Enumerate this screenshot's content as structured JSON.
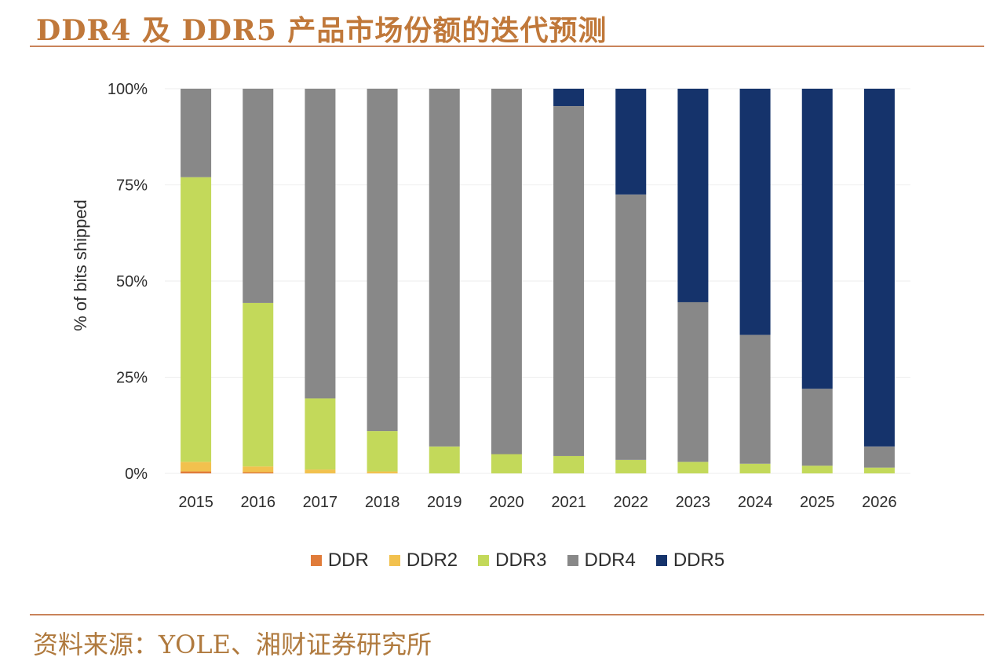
{
  "header": {
    "title": "DDR4 及 DDR5 产品市场份额的迭代预测"
  },
  "footer": {
    "source": "资料来源：YOLE、湘财证券研究所"
  },
  "chart_data": {
    "type": "bar",
    "stacked": true,
    "title": "DDR4 及 DDR5 产品市场份额的迭代预测",
    "xlabel": "",
    "ylabel": "% of bits shipped",
    "ylim": [
      0,
      100
    ],
    "yticks": [
      0,
      25,
      50,
      75,
      100
    ],
    "ytick_labels": [
      "0%",
      "25%",
      "50%",
      "75%",
      "100%"
    ],
    "categories": [
      "2015",
      "2016",
      "2017",
      "2018",
      "2019",
      "2020",
      "2021",
      "2022",
      "2023",
      "2024",
      "2025",
      "2026"
    ],
    "legend_position": "bottom",
    "series": [
      {
        "name": "DDR",
        "color": "#e07b39",
        "values": [
          0.5,
          0.3,
          0,
          0,
          0,
          0,
          0,
          0,
          0,
          0,
          0,
          0
        ]
      },
      {
        "name": "DDR2",
        "color": "#f2c14e",
        "values": [
          2.5,
          1.5,
          1,
          0.5,
          0,
          0,
          0,
          0,
          0,
          0,
          0,
          0
        ]
      },
      {
        "name": "DDR3",
        "color": "#c3d95a",
        "values": [
          74,
          42.5,
          18.5,
          10.5,
          7,
          5,
          4.5,
          3.5,
          3,
          2.5,
          2,
          1.5
        ]
      },
      {
        "name": "DDR4",
        "color": "#888888",
        "values": [
          23,
          55.7,
          80.5,
          89,
          93,
          95,
          91,
          69,
          41.5,
          33.5,
          20,
          5.5
        ]
      },
      {
        "name": "DDR5",
        "color": "#15336b",
        "values": [
          0,
          0,
          0,
          0,
          0,
          0,
          4.5,
          27.5,
          55.5,
          64,
          78,
          93
        ]
      }
    ]
  }
}
